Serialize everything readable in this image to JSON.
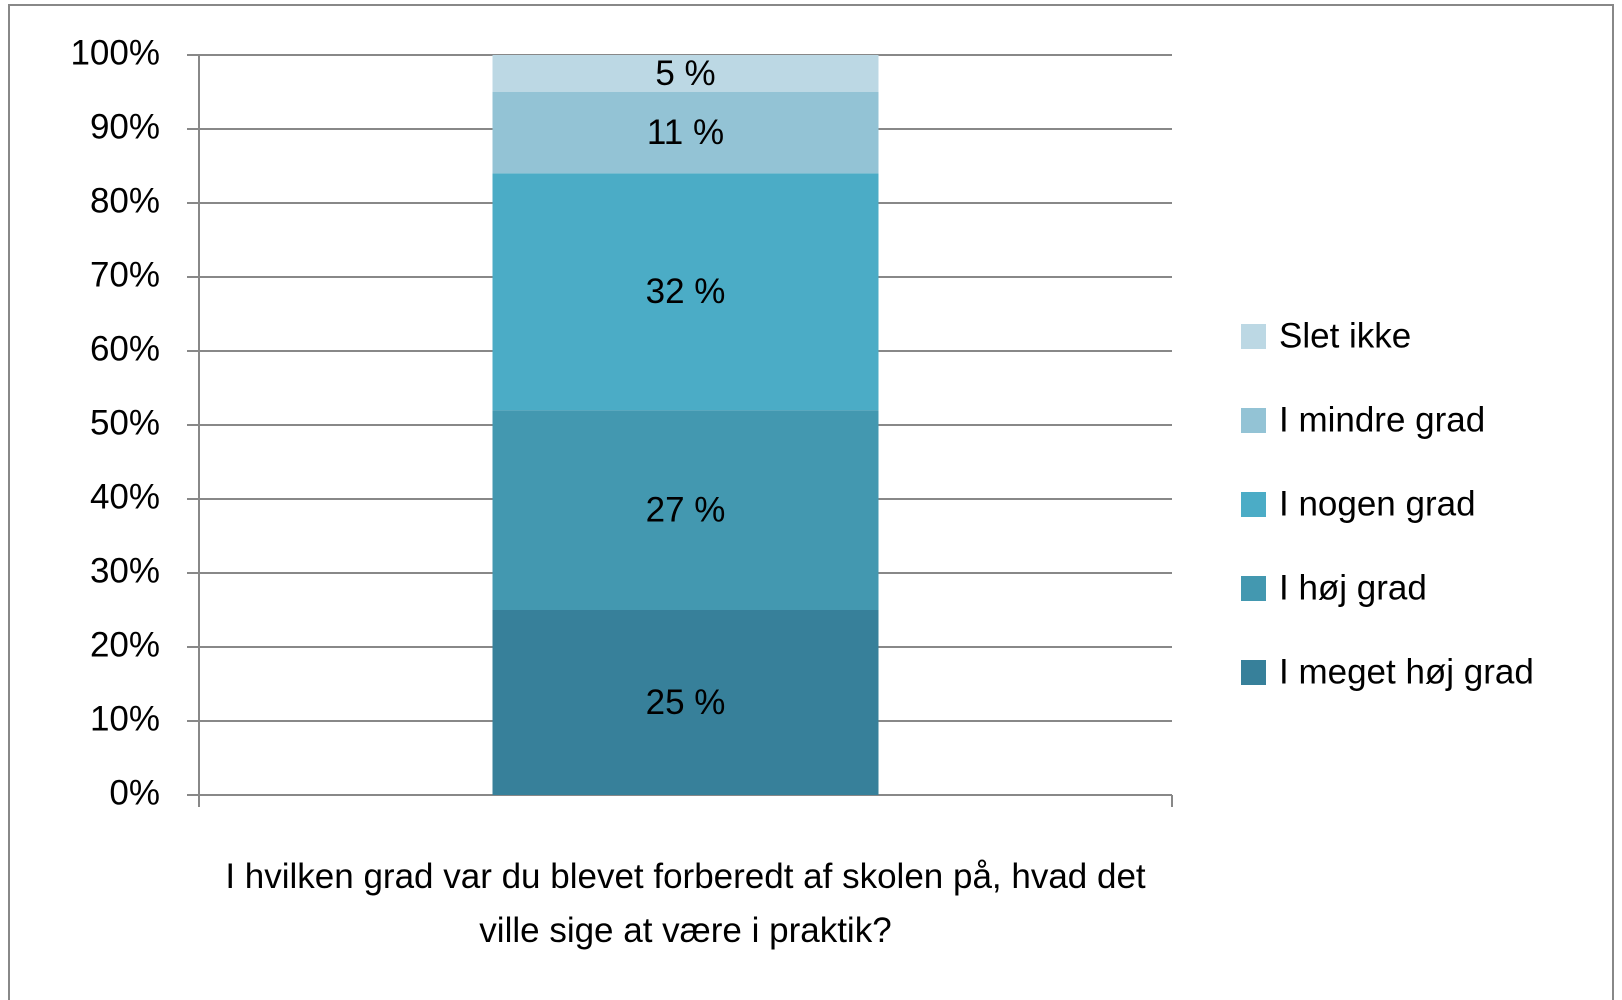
{
  "chart_data": {
    "type": "stacked_bar",
    "categories": [
      "I hvilken grad var du blevet forberedt af skolen på, hvad det ville sige at være i praktik?"
    ],
    "series": [
      {
        "name": "I meget høj grad",
        "color": "#37809a",
        "values": [
          25
        ],
        "value_labels": [
          "25 %"
        ]
      },
      {
        "name": "I høj grad",
        "color": "#4398b0",
        "values": [
          27
        ],
        "value_labels": [
          "27 %"
        ]
      },
      {
        "name": "I nogen grad",
        "color": "#4bacc6",
        "values": [
          32
        ],
        "value_labels": [
          "32 %"
        ]
      },
      {
        "name": "I mindre grad",
        "color": "#93c3d5",
        "values": [
          11
        ],
        "value_labels": [
          "11 %"
        ]
      },
      {
        "name": "Slet ikke",
        "color": "#bcd8e4",
        "values": [
          5
        ],
        "value_labels": [
          "5 %"
        ]
      }
    ],
    "ylim": [
      0,
      100
    ],
    "yticks": [
      {
        "value": 0,
        "label": "0%"
      },
      {
        "value": 10,
        "label": "10%"
      },
      {
        "value": 20,
        "label": "20%"
      },
      {
        "value": 30,
        "label": "30%"
      },
      {
        "value": 40,
        "label": "40%"
      },
      {
        "value": 50,
        "label": "50%"
      },
      {
        "value": 60,
        "label": "60%"
      },
      {
        "value": 70,
        "label": "70%"
      },
      {
        "value": 80,
        "label": "80%"
      },
      {
        "value": 90,
        "label": "90%"
      },
      {
        "value": 100,
        "label": "100%"
      }
    ],
    "grid": true,
    "legend": "right"
  }
}
